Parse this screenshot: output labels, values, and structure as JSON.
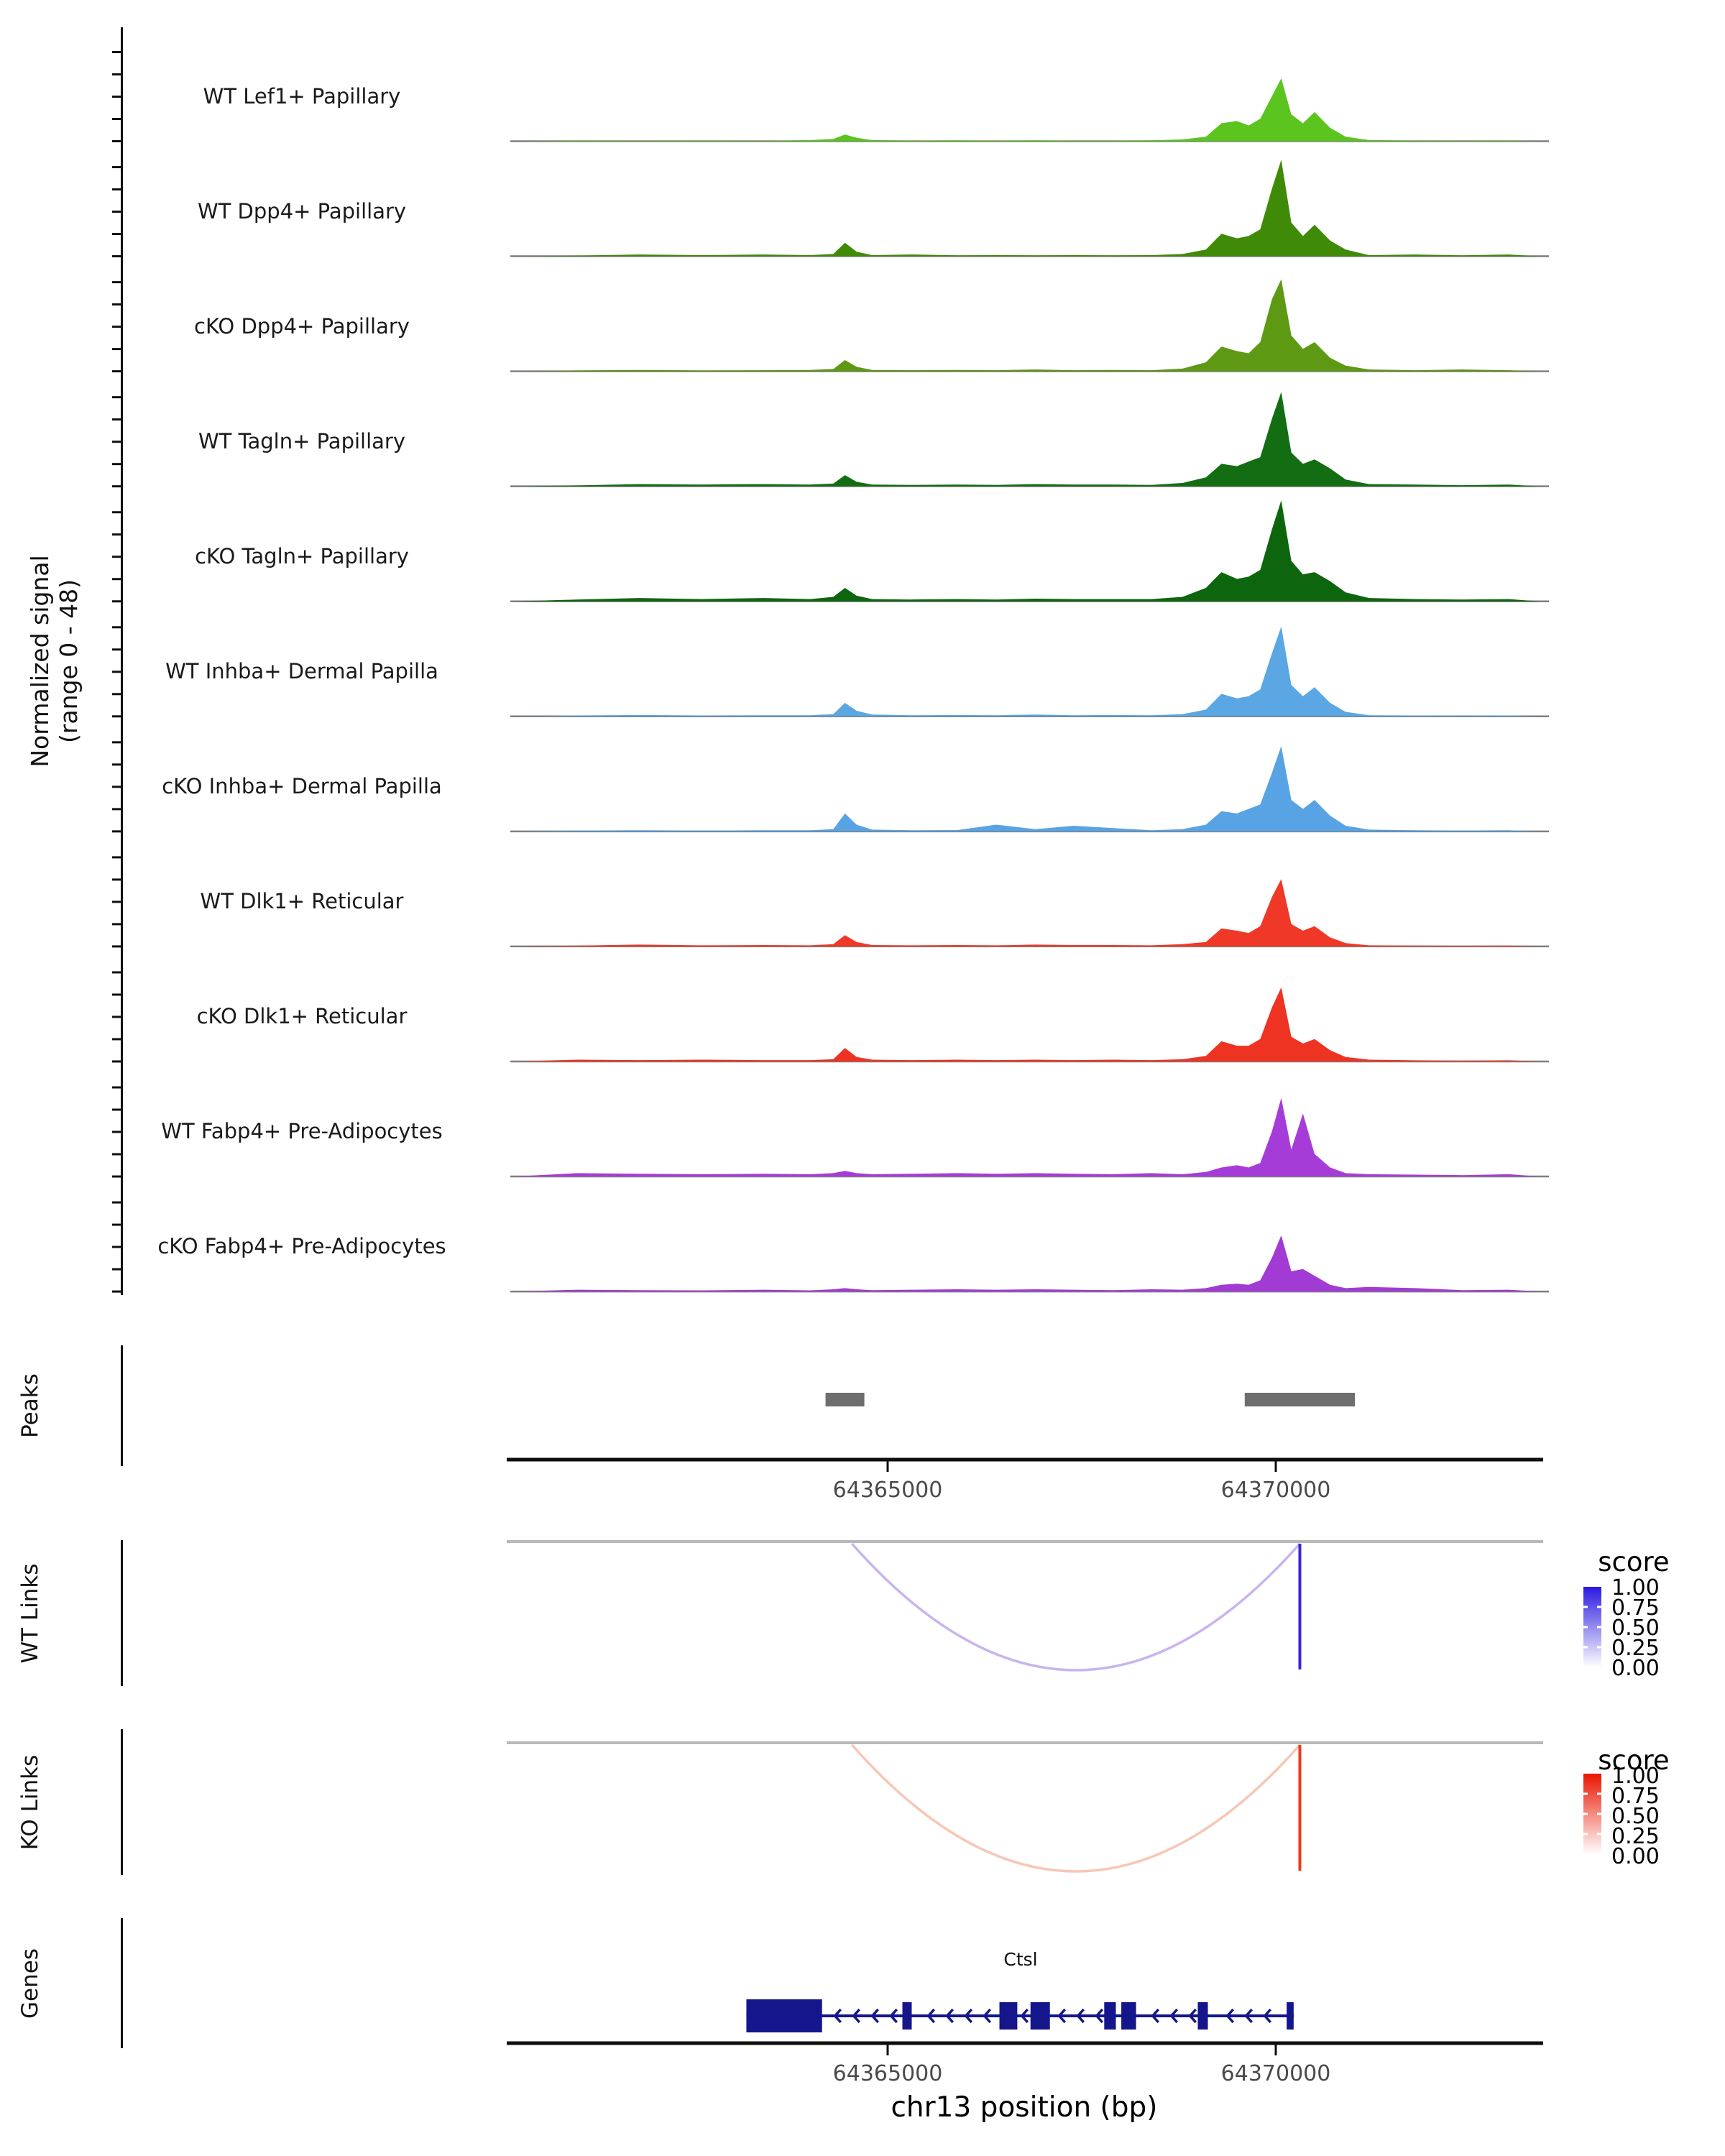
{
  "y_axis": {
    "label_line1": "Normalized signal",
    "label_line2": "(range 0 - 48)"
  },
  "sections": {
    "peaks": "Peaks",
    "wt_links": "WT Links",
    "ko_links": "KO Links",
    "genes": "Genes"
  },
  "x_axis": {
    "title": "chr13 position (bp)",
    "ticks": [
      "64365000",
      "64370000"
    ],
    "tick_bp": [
      64365000,
      64370000
    ]
  },
  "legends": {
    "wt": {
      "title": "score",
      "labels": [
        "1.00",
        "0.75",
        "0.50",
        "0.25",
        "0.00"
      ],
      "top_color": "#2A19E0"
    },
    "ko": {
      "title": "score",
      "labels": [
        "1.00",
        "0.75",
        "0.50",
        "0.25",
        "0.00"
      ],
      "top_color": "#EA1500"
    }
  },
  "gene": {
    "name": "Ctsl",
    "strand": "-",
    "color": "#15158C",
    "start": 64363180,
    "end": 64370230,
    "exons": [
      {
        "start": 64363180,
        "end": 64364155,
        "tall": true
      },
      {
        "start": 64365190,
        "end": 64365310
      },
      {
        "start": 64366440,
        "end": 64366670
      },
      {
        "start": 64366840,
        "end": 64367090
      },
      {
        "start": 64367790,
        "end": 64367940
      },
      {
        "start": 64368010,
        "end": 64368200
      },
      {
        "start": 64368995,
        "end": 64369125
      },
      {
        "start": 64370140,
        "end": 64370230
      }
    ]
  },
  "chart_data": {
    "type": "area",
    "title": "",
    "xlabel": "chr13 position (bp)",
    "ylabel": "Normalized signal (range 0 - 48)",
    "ylim": [
      0,
      48
    ],
    "xlim": [
      64360140,
      64373520
    ],
    "grid": false,
    "x": [
      64360200,
      64361000,
      64361800,
      64362600,
      64363400,
      64364000,
      64364300,
      64364450,
      64364600,
      64364800,
      64365300,
      64365900,
      64366400,
      64366900,
      64367400,
      64367900,
      64368400,
      64368800,
      64369100,
      64369300,
      64369500,
      64369650,
      64369800,
      64369950,
      64370070,
      64370200,
      64370350,
      64370500,
      64370700,
      64370900,
      64371200,
      64371800,
      64372400,
      64373000,
      64373400
    ],
    "series": [
      {
        "name": "WT Lef1+ Papillary",
        "color": "#5CC41F",
        "values": [
          0,
          0.3,
          0.2,
          0.3,
          0.2,
          0.5,
          1,
          3,
          1.5,
          0.5,
          0.3,
          0.4,
          0.3,
          0.4,
          0.3,
          0.3,
          0.4,
          0.8,
          2,
          8,
          9,
          7,
          10,
          20,
          28,
          12,
          8,
          13,
          6,
          2,
          0.5,
          0.3,
          0.2,
          0.3,
          0
        ]
      },
      {
        "name": "WT Dpp4+ Papillary",
        "color": "#3F8A06",
        "values": [
          0,
          0.3,
          0.8,
          0.5,
          0.8,
          0.5,
          1,
          6,
          2,
          0.5,
          0.8,
          0.4,
          0.5,
          0.4,
          0.5,
          0.4,
          0.5,
          1,
          3,
          10,
          8,
          9,
          12,
          30,
          43,
          15,
          9,
          14,
          7,
          3,
          0.5,
          0.8,
          0.4,
          0.8,
          0
        ]
      },
      {
        "name": "cKO Dpp4+ Papillary",
        "color": "#5E9914",
        "values": [
          0,
          0.4,
          0.6,
          0.4,
          0.5,
          0.6,
          1,
          5,
          2,
          0.6,
          0.5,
          0.6,
          0.5,
          0.8,
          0.5,
          0.6,
          0.5,
          1.2,
          4,
          11,
          9,
          8,
          13,
          32,
          41,
          16,
          10,
          13,
          6,
          2.5,
          0.8,
          0.5,
          0.8,
          0.5,
          0
        ]
      },
      {
        "name": "WT Tagln+ Papillary",
        "color": "#136E13",
        "values": [
          0,
          0.4,
          1,
          0.8,
          1,
          0.8,
          1.2,
          5,
          2,
          0.8,
          0.6,
          0.8,
          0.6,
          1,
          0.8,
          0.8,
          0.6,
          1.5,
          4,
          10,
          9,
          11,
          13,
          30,
          42,
          15,
          10,
          12,
          8,
          3,
          1,
          0.8,
          0.5,
          0.8,
          0
        ]
      },
      {
        "name": "cKO Tagln+ Papillary",
        "color": "#0D660D",
        "values": [
          0,
          0.8,
          1.5,
          1,
          1.5,
          1,
          2,
          6,
          2.5,
          1,
          0.8,
          1,
          0.8,
          1.2,
          1,
          1,
          1,
          2,
          6,
          13,
          10,
          11,
          14,
          32,
          45,
          18,
          12,
          13,
          9,
          4,
          1.5,
          1,
          0.8,
          1,
          0
        ]
      },
      {
        "name": "WT Inhba+ Dermal Papilla",
        "color": "#5BA7E3",
        "values": [
          0,
          0.4,
          0.6,
          0.4,
          0.5,
          0.5,
          1,
          6,
          2.5,
          0.8,
          0.5,
          0.6,
          0.5,
          0.8,
          0.5,
          0.6,
          0.5,
          1,
          3,
          10,
          8,
          9,
          12,
          28,
          40,
          14,
          9,
          13,
          6,
          2,
          0.5,
          0.4,
          0.3,
          0.4,
          0
        ]
      },
      {
        "name": "cKO Inhba+ Dermal Papilla",
        "color": "#57A3E3",
        "values": [
          0,
          0.4,
          0.5,
          0.4,
          0.5,
          0.5,
          1,
          8,
          3,
          0.8,
          0.5,
          0.6,
          3,
          1,
          2.5,
          1.5,
          0.5,
          1,
          3,
          9,
          8,
          10,
          12,
          26,
          38,
          14,
          10,
          14,
          7,
          2.5,
          0.8,
          0.5,
          0.4,
          0.5,
          0
        ]
      },
      {
        "name": "WT Dlk1+ Reticular",
        "color": "#EF3827",
        "values": [
          0,
          0.4,
          0.8,
          0.5,
          0.6,
          0.5,
          1,
          5,
          2,
          0.6,
          0.5,
          0.6,
          0.5,
          0.8,
          0.6,
          0.6,
          0.5,
          1,
          2,
          8,
          7,
          6,
          9,
          22,
          30,
          10,
          7,
          9,
          4,
          1.5,
          0.5,
          0.4,
          0.3,
          0.4,
          0
        ]
      },
      {
        "name": "cKO Dlk1+ Reticular",
        "color": "#EE3322",
        "values": [
          0,
          0.8,
          0.6,
          0.8,
          0.6,
          0.6,
          1,
          6,
          2,
          0.8,
          0.6,
          0.8,
          0.6,
          0.8,
          0.6,
          0.8,
          0.6,
          1,
          2.5,
          9,
          7,
          7,
          10,
          24,
          33,
          11,
          8,
          10,
          5,
          2,
          0.8,
          0.5,
          0.4,
          0.5,
          0
        ]
      },
      {
        "name": "WT Fabp4+ Pre-Adipocytes",
        "color": "#A63CD8",
        "values": [
          0,
          1.5,
          1.2,
          1,
          1.2,
          1,
          1.5,
          2.5,
          1.5,
          1,
          1.2,
          1.5,
          1.2,
          1.5,
          1.2,
          1,
          1.5,
          1,
          2,
          4,
          5,
          4,
          6,
          20,
          35,
          12,
          28,
          10,
          4,
          1.5,
          1,
          0.8,
          0.6,
          1,
          0
        ]
      },
      {
        "name": "cKO Fabp4+ Pre-Adipocytes",
        "color": "#A23AD4",
        "values": [
          0,
          0.8,
          0.6,
          0.5,
          0.8,
          0.5,
          1,
          1.5,
          1,
          0.6,
          0.8,
          1,
          0.8,
          1,
          0.8,
          0.6,
          1,
          0.8,
          1.5,
          3,
          3.5,
          3,
          5,
          15,
          25,
          9,
          10,
          7,
          3,
          1.5,
          2,
          1.5,
          0.6,
          0.8,
          0
        ]
      }
    ],
    "peaks": [
      {
        "start": 64364200,
        "end": 64364700
      },
      {
        "start": 64369600,
        "end": 64371020
      }
    ],
    "links": [
      {
        "group": "WT",
        "from": 64364540,
        "to": 64370310,
        "score": 0.3,
        "color": "#C9B4EE"
      },
      {
        "group": "WT",
        "from": 64370300,
        "to": 64370320,
        "score": 1.0,
        "color": "#3A24D8"
      },
      {
        "group": "KO",
        "from": 64364540,
        "to": 64370310,
        "score": 0.3,
        "color": "#F8C6B5"
      },
      {
        "group": "KO",
        "from": 64370300,
        "to": 64370320,
        "score": 1.0,
        "color": "#EE3A1C"
      }
    ]
  }
}
